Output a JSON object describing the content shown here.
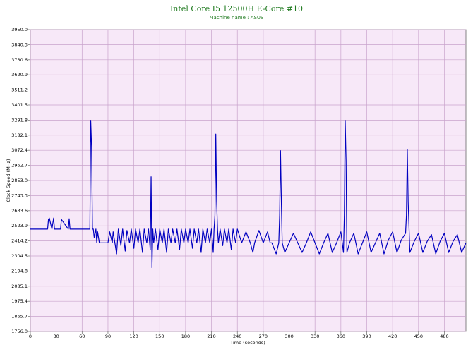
{
  "chart_data": {
    "type": "line",
    "title": "Intel Core I5 12500H E-Core #10",
    "subtitle": "Machine name : ASUS",
    "x_label": "Time (seconds)",
    "y_label": "Clock Speed (MHz)",
    "xlim": [
      0,
      505
    ],
    "xticks": [
      0,
      30,
      60,
      90,
      120,
      150,
      180,
      210,
      240,
      270,
      300,
      330,
      360,
      390,
      420,
      450,
      480
    ],
    "ylim": [
      1756,
      3950
    ],
    "yticks": [
      {
        "value": 1756,
        "label": "1756.0"
      },
      1865.7,
      1975.4,
      2085.1,
      2194.8,
      2304.5,
      2414.2,
      2523.9,
      2633.6,
      2743.3,
      {
        "value": 2853,
        "label": "2853.0"
      },
      2962.7,
      3072.4,
      3182.1,
      3291.8,
      3401.5,
      3511.2,
      3620.9,
      3730.6,
      3840.3,
      {
        "value": 3950,
        "label": "3950.0"
      }
    ],
    "grid": true,
    "x": [
      0,
      20,
      21,
      22,
      25,
      27,
      28,
      30,
      35,
      36,
      44,
      45,
      46,
      50,
      68,
      69,
      70,
      71,
      72,
      73,
      74,
      76,
      77,
      78,
      80,
      90,
      92,
      95,
      96,
      100,
      102,
      105,
      107,
      110,
      112,
      115,
      117,
      120,
      122,
      125,
      127,
      130,
      132,
      135,
      137,
      139,
      140,
      141,
      142,
      143,
      145,
      148,
      150,
      153,
      155,
      158,
      160,
      163,
      165,
      168,
      170,
      173,
      175,
      178,
      180,
      183,
      185,
      188,
      190,
      193,
      195,
      198,
      200,
      203,
      205,
      208,
      210,
      212,
      213,
      214,
      215,
      216,
      217,
      218,
      220,
      223,
      225,
      228,
      230,
      233,
      235,
      238,
      240,
      245,
      250,
      255,
      258,
      260,
      265,
      270,
      275,
      278,
      280,
      285,
      288,
      289,
      290,
      291,
      292,
      295,
      300,
      305,
      310,
      315,
      320,
      325,
      330,
      335,
      340,
      345,
      350,
      355,
      360,
      363,
      364,
      365,
      366,
      367,
      370,
      375,
      380,
      385,
      390,
      395,
      400,
      405,
      410,
      415,
      420,
      425,
      430,
      435,
      436,
      437,
      438,
      440,
      445,
      450,
      455,
      460,
      465,
      470,
      475,
      480,
      485,
      490,
      495,
      500,
      505
    ],
    "series": [
      {
        "color": "#0000c0",
        "values": [
          2500,
          2500,
          2570,
          2580,
          2500,
          2580,
          2500,
          2500,
          2500,
          2570,
          2500,
          2575,
          2500,
          2500,
          2500,
          2500,
          3290,
          3100,
          2500,
          2500,
          2440,
          2500,
          2400,
          2480,
          2400,
          2400,
          2480,
          2400,
          2480,
          2320,
          2500,
          2380,
          2500,
          2340,
          2490,
          2400,
          2500,
          2360,
          2500,
          2400,
          2500,
          2330,
          2500,
          2400,
          2500,
          2350,
          2880,
          2220,
          2500,
          2400,
          2500,
          2350,
          2500,
          2400,
          2500,
          2330,
          2500,
          2400,
          2500,
          2400,
          2500,
          2350,
          2500,
          2400,
          2500,
          2400,
          2500,
          2360,
          2500,
          2400,
          2500,
          2330,
          2500,
          2400,
          2500,
          2400,
          2500,
          2330,
          2500,
          2600,
          3190,
          2700,
          2500,
          2400,
          2500,
          2380,
          2500,
          2400,
          2500,
          2350,
          2500,
          2400,
          2500,
          2400,
          2480,
          2400,
          2330,
          2400,
          2490,
          2400,
          2480,
          2400,
          2400,
          2320,
          2400,
          2600,
          3070,
          2700,
          2400,
          2330,
          2400,
          2470,
          2400,
          2330,
          2400,
          2480,
          2400,
          2320,
          2400,
          2470,
          2330,
          2400,
          2480,
          2330,
          2600,
          3290,
          3000,
          2330,
          2400,
          2470,
          2320,
          2400,
          2480,
          2330,
          2400,
          2470,
          2320,
          2420,
          2480,
          2330,
          2420,
          2470,
          2600,
          3080,
          2700,
          2330,
          2410,
          2470,
          2330,
          2410,
          2460,
          2320,
          2410,
          2470,
          2330,
          2410,
          2460,
          2330,
          2400
        ]
      }
    ]
  }
}
